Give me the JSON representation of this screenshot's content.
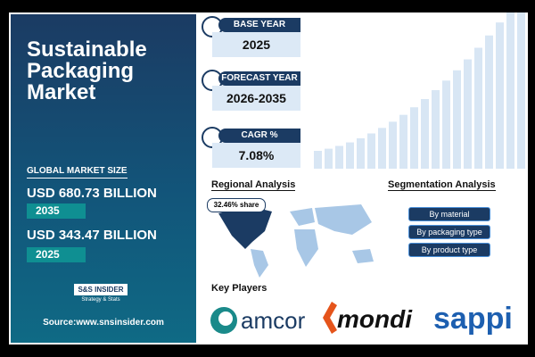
{
  "title": "Sustainable Packaging Market",
  "market_size": {
    "label": "GLOBAL MARKET SIZE",
    "items": [
      {
        "value": "USD 680.73 BILLION",
        "year": "2035"
      },
      {
        "value": "USD 343.47 BILLION",
        "year": "2025"
      }
    ]
  },
  "logo": {
    "name": "S&S INSIDER",
    "tagline": "Strategy & Stats"
  },
  "source": "Source:www.snsinsider.com",
  "stats": [
    {
      "label": "BASE YEAR",
      "value": "2025"
    },
    {
      "label": "FORECAST YEAR",
      "value": "2026-2035"
    },
    {
      "label": "CAGR %",
      "value": "7.08%"
    }
  ],
  "regional": {
    "title": "Regional Analysis",
    "share": "32.46% share"
  },
  "segmentation": {
    "title": "Segmentation Analysis",
    "items": [
      "By material",
      "By packaging type",
      "By product type"
    ]
  },
  "key_players": {
    "title": "Key Players",
    "items": [
      "amcor",
      "mondi",
      "sappi"
    ]
  }
}
